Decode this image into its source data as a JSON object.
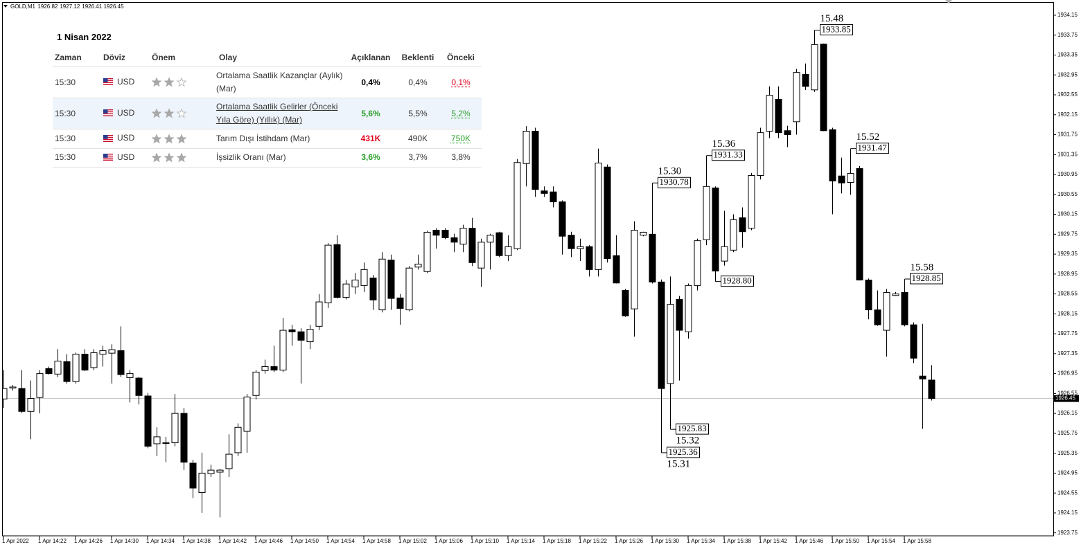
{
  "chart_data": {
    "type": "candlestick",
    "symbol": "GOLD,M1",
    "up_color": "#ffffff",
    "down_color": "#000000",
    "x": [
      "1 Apr 2022",
      null,
      null,
      null,
      "1 Apr 14:22",
      null,
      null,
      null,
      "1 Apr 14:26",
      null,
      null,
      null,
      "1 Apr 14:30",
      null,
      null,
      null,
      "1 Apr 14:34",
      null,
      null,
      null,
      "1 Apr 14:38",
      null,
      null,
      null,
      "1 Apr 14:42",
      null,
      null,
      null,
      "1 Apr 14:46",
      null,
      null,
      null,
      "1 Apr 14:50",
      null,
      null,
      null,
      "1 Apr 14:54",
      null,
      null,
      null,
      "1 Apr 14:58",
      null,
      null,
      null,
      "1 Apr 15:02",
      null,
      null,
      null,
      "1 Apr 15:06",
      null,
      null,
      null,
      "1 Apr 15:10",
      null,
      null,
      null,
      "1 Apr 15:14",
      null,
      null,
      null,
      "1 Apr 15:18",
      null,
      null,
      null,
      "1 Apr 15:22",
      null,
      null,
      null,
      "1 Apr 15:26",
      null,
      null,
      null,
      "1 Apr 15:30",
      null,
      null,
      null,
      "1 Apr 15:34",
      null,
      null,
      null,
      "1 Apr 15:38",
      null,
      null,
      null,
      "1 Apr 15:42",
      null,
      null,
      null,
      "1 Apr 15:46",
      null,
      null,
      null,
      "1 Apr 15:50",
      null,
      null,
      null,
      "1 Apr 15:54",
      null,
      null,
      null,
      "1 Apr 15:58",
      null,
      null,
      null
    ],
    "open": [
      1926.44,
      1926.66,
      1926.65,
      1926.19,
      1926.47,
      1927.05,
      1926.94,
      1927.19,
      1926.79,
      1927.34,
      1927.07,
      1927.34,
      1927.36,
      1927.41,
      1926.87,
      1926.86,
      1926.5,
      1925.54,
      1925.56,
      1925.56,
      1926.15,
      1925.15,
      1924.56,
      1924.94,
      1924.97,
      1925.04,
      1925.36,
      1925.79,
      1926.51,
      1927.01,
      1927.09,
      1927.02,
      1927.83,
      1927.79,
      1927.59,
      1927.9,
      1928.37,
      1929.54,
      1928.48,
      1928.69,
      1928.72,
      1928.87,
      1928.23,
      1929.23,
      1928.47,
      1928.23,
      1929.09,
      1929.0,
      1929.83,
      1929.83,
      1929.68,
      1929.55,
      1929.87,
      1929.07,
      1929.59,
      1929.78,
      1929.32,
      1929.46,
      1931.17,
      1931.82,
      1930.62,
      1930.6,
      1930.4,
      1929.73,
      1929.46,
      1929.5,
      1929.04,
      1931.1,
      1929.32,
      1928.62,
      1928.25,
      1929.73,
      1929.75,
      1928.79,
      1926.75,
      1928.44,
      1927.79,
      1928.72,
      1929.64,
      1930.68,
      1929.21,
      1929.43,
      1930.08,
      1929.87,
      1930.93,
      1931.82,
      1932.46,
      1931.83,
      1932.01,
      1932.96,
      1932.65,
      1933.57,
      1931.85,
      1930.92,
      1930.79,
      1931.07,
      1928.83,
      1928.23,
      1927.82,
      1928.52,
      1928.58,
      1927.93,
      1926.9,
      1926.82
    ],
    "high": [
      1927.02,
      1926.72,
      1927.02,
      1926.81,
      1927.02,
      1927.09,
      1927.44,
      1927.34,
      1927.37,
      1927.44,
      1927.44,
      1927.51,
      1927.54,
      1927.9,
      1927.02,
      1926.88,
      1926.56,
      1925.87,
      1925.68,
      1926.54,
      1926.26,
      1925.22,
      1925.36,
      1925.12,
      1925.04,
      1925.73,
      1925.95,
      1926.54,
      1927.02,
      1927.23,
      1927.51,
      1928.07,
      1927.93,
      1927.86,
      1927.93,
      1928.55,
      1929.57,
      1929.73,
      1928.83,
      1928.97,
      1929.18,
      1928.93,
      1929.39,
      1929.34,
      1928.55,
      1929.11,
      1929.34,
      1929.82,
      1929.87,
      1929.87,
      1929.76,
      1929.94,
      1930.08,
      1929.66,
      1929.76,
      1929.8,
      1929.73,
      1931.26,
      1931.92,
      1931.89,
      1930.71,
      1930.71,
      1930.43,
      1929.8,
      1929.66,
      1929.53,
      1931.47,
      1931.15,
      1929.73,
      1928.65,
      1930.01,
      1929.8,
      1930.78,
      1928.84,
      1928.9,
      1928.51,
      1928.76,
      1929.66,
      1931.33,
      1930.71,
      1930.22,
      1930.15,
      1930.29,
      1930.98,
      1931.89,
      1932.72,
      1932.72,
      1931.93,
      1933.07,
      1933.18,
      1933.85,
      1933.58,
      1931.89,
      1931.29,
      1931.47,
      1931.12,
      1928.86,
      1928.62,
      1928.65,
      1928.59,
      1928.85,
      1927.98,
      1927.95,
      1927.12
    ],
    "low": [
      1926.26,
      1926.61,
      1926.16,
      1925.63,
      1926.15,
      1926.93,
      1926.88,
      1926.75,
      1926.75,
      1927.0,
      1927.02,
      1927.09,
      1926.75,
      1926.88,
      1926.37,
      1926.33,
      1925.45,
      1925.29,
      1925.17,
      1925.49,
      1925.01,
      1924.45,
      1924.15,
      1924.87,
      1924.06,
      1924.87,
      1925.29,
      1925.36,
      1926.43,
      1926.95,
      1926.98,
      1926.98,
      1927.51,
      1926.75,
      1927.44,
      1927.82,
      1928.27,
      1928.46,
      1928.44,
      1928.55,
      1928.59,
      1928.23,
      1928.18,
      1928.23,
      1927.93,
      1928.2,
      1929.04,
      1928.97,
      1929.46,
      1929.65,
      1929.39,
      1929.39,
      1929.11,
      1928.69,
      1929.04,
      1929.29,
      1929.21,
      1929.43,
      1930.71,
      1930.5,
      1930.5,
      1930.29,
      1929.34,
      1929.29,
      1929.21,
      1928.9,
      1928.9,
      1929.18,
      1928.76,
      1928.09,
      1927.69,
      1929.71,
      1928.76,
      1925.36,
      1925.83,
      1926.81,
      1927.65,
      1928.62,
      1929.53,
      1928.8,
      1929.12,
      1929.39,
      1929.48,
      1929.83,
      1930.85,
      1931.68,
      1931.68,
      1931.5,
      1931.75,
      1932.65,
      1932.61,
      1931.82,
      1930.15,
      1930.57,
      1930.54,
      1928.82,
      1928.04,
      1927.91,
      1927.29,
      1928.51,
      1927.9,
      1927.16,
      1925.84,
      1926.41
    ],
    "close": [
      1926.65,
      1926.68,
      1926.19,
      1926.45,
      1926.95,
      1926.95,
      1927.2,
      1926.79,
      1927.34,
      1927.02,
      1927.37,
      1927.41,
      1927.43,
      1926.93,
      1926.95,
      1926.51,
      1925.49,
      1925.68,
      1925.55,
      1926.15,
      1925.17,
      1924.65,
      1924.95,
      1925.01,
      1925.01,
      1925.33,
      1925.87,
      1926.48,
      1926.98,
      1927.09,
      1927.02,
      1927.82,
      1927.79,
      1927.62,
      1927.84,
      1928.39,
      1929.53,
      1928.48,
      1928.75,
      1928.83,
      1929.04,
      1928.43,
      1929.25,
      1928.46,
      1928.26,
      1929.07,
      1929.15,
      1929.79,
      1929.73,
      1929.68,
      1929.59,
      1929.87,
      1929.18,
      1929.59,
      1929.73,
      1929.32,
      1929.5,
      1931.19,
      1931.82,
      1930.65,
      1930.57,
      1930.4,
      1929.71,
      1929.46,
      1929.5,
      1929.04,
      1931.18,
      1929.26,
      1928.77,
      1928.11,
      1929.83,
      1929.79,
      1928.79,
      1926.65,
      1928.34,
      1927.82,
      1928.72,
      1929.62,
      1930.71,
      1929.01,
      1929.5,
      1930.04,
      1929.8,
      1930.93,
      1931.79,
      1932.54,
      1931.79,
      1931.75,
      1933.0,
      1932.72,
      1933.56,
      1931.83,
      1930.82,
      1930.78,
      1930.97,
      1928.83,
      1928.23,
      1927.93,
      1928.58,
      1928.55,
      1927.93,
      1927.26,
      1926.84,
      1926.45
    ],
    "ylim": [
      1923.69,
      1934.4
    ],
    "yticks": [
      1923.75,
      1924.15,
      1924.55,
      1924.95,
      1925.35,
      1925.75,
      1926.15,
      1926.55,
      1926.95,
      1927.35,
      1927.75,
      1928.15,
      1928.55,
      1928.95,
      1929.35,
      1929.75,
      1930.15,
      1930.55,
      1930.95,
      1931.35,
      1931.75,
      1932.15,
      1932.55,
      1932.95,
      1933.35,
      1933.75,
      1934.15
    ],
    "annotations": [
      {
        "time": "15.30",
        "price": 1930.78
      },
      {
        "time": "15.31",
        "price": 1925.36
      },
      {
        "time": "15.32",
        "price": 1925.83
      },
      {
        "time": "15.36",
        "price": 1931.33
      },
      {
        "price": {
          "value": 1928.8,
          "label": "1928.80"
        }
      },
      {
        "time": "15.48",
        "price": 1933.85
      },
      {
        "time": "15.52",
        "price": 1931.47
      },
      {
        "time": "15.58",
        "price": 1928.85
      }
    ]
  },
  "calendar": {
    "date": "1 Nisan 2022",
    "headers": [
      "Zaman",
      "Döviz",
      "Önem",
      "Olay",
      "Açıklanan",
      "Beklenti",
      "Önceki"
    ],
    "rows": [
      {
        "time": "15:30",
        "currency": "USD",
        "importance": 2,
        "event": "Ortalama Saatlik Kazançlar (Aylık) (Mar)",
        "actual": "0,4%",
        "actual_color": "#000000",
        "forecast": "0,4%",
        "previous": "0,1%",
        "previous_color": "#e0001b",
        "previous_revised": true
      },
      {
        "time": "15:30",
        "currency": "USD",
        "importance": 2,
        "event": "Ortalama Saatlik Gelirler (Önceki Yıla Göre) (Yıllık) (Mar)",
        "actual": "5,6%",
        "actual_color": "#2aa02a",
        "forecast": "5,5%",
        "previous": "5,2%",
        "previous_color": "#2aa02a",
        "previous_revised": true
      },
      {
        "time": "15:30",
        "currency": "USD",
        "importance": 3,
        "event": "Tarım Dışı İstihdam (Mar)",
        "actual": "431K",
        "actual_color": "#e0001b",
        "forecast": "490K",
        "previous": "750K",
        "previous_color": "#2aa02a",
        "previous_revised": true
      },
      {
        "time": "15:30",
        "currency": "USD",
        "importance": 3,
        "event": "İşsizlik Oranı (Mar)",
        "actual": "3,6%",
        "actual_color": "#2aa02a",
        "forecast": "3,7%",
        "previous": "3,8%",
        "previous_color": "#333333",
        "previous_revised": false
      }
    ]
  }
}
